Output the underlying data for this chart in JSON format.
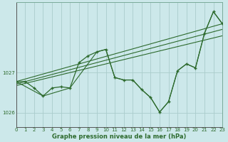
{
  "title": "",
  "xlabel": "Graphe pression niveau de la mer (hPa)",
  "ylabel": "",
  "bg_color": "#cce8ea",
  "grid_color": "#aacccc",
  "line_color": "#2d6a2d",
  "xlim": [
    0,
    23
  ],
  "ylim": [
    1025.65,
    1028.75
  ],
  "yticks": [
    1026,
    1027
  ],
  "xticks": [
    0,
    1,
    2,
    3,
    4,
    5,
    6,
    7,
    8,
    9,
    10,
    11,
    12,
    13,
    14,
    15,
    16,
    17,
    18,
    19,
    20,
    21,
    22,
    23
  ],
  "main_line": {
    "x": [
      0,
      1,
      2,
      3,
      4,
      5,
      6,
      7,
      8,
      9,
      10,
      11,
      12,
      13,
      14,
      15,
      16,
      17,
      18,
      19,
      20,
      21,
      22,
      23
    ],
    "y": [
      1026.78,
      1026.78,
      1026.62,
      1026.42,
      1026.62,
      1026.65,
      1026.62,
      1027.25,
      1027.42,
      1027.52,
      1027.58,
      1026.88,
      1026.82,
      1026.82,
      1026.58,
      1026.38,
      1026.02,
      1026.28,
      1027.05,
      1027.22,
      1027.12,
      1027.98,
      1028.52,
      1028.22
    ]
  },
  "extra_lines": [
    {
      "x": [
        0,
        3,
        6,
        9,
        10,
        11,
        12,
        13,
        14,
        15,
        16,
        17,
        18,
        19,
        20,
        21,
        22,
        23
      ],
      "y": [
        1026.78,
        1026.42,
        1026.62,
        1027.52,
        1027.58,
        1026.88,
        1026.82,
        1026.82,
        1026.58,
        1026.38,
        1026.02,
        1026.28,
        1027.05,
        1027.22,
        1027.12,
        1027.98,
        1028.52,
        1028.22
      ]
    },
    {
      "x": [
        0,
        23
      ],
      "y": [
        1026.78,
        1028.22
      ]
    },
    {
      "x": [
        0,
        23
      ],
      "y": [
        1026.72,
        1028.08
      ]
    },
    {
      "x": [
        0,
        23
      ],
      "y": [
        1026.68,
        1027.92
      ]
    }
  ]
}
